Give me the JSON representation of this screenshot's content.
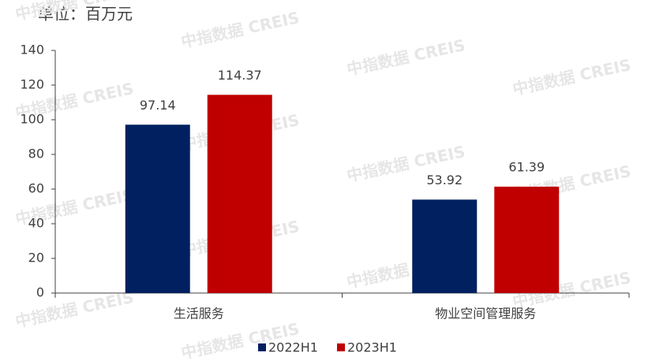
{
  "chart_data": {
    "type": "bar",
    "title": "单位：百万元",
    "watermark": "中指数据 CREIS",
    "categories": [
      "生活服务",
      "物业空间管理服务"
    ],
    "series": [
      {
        "name": "2022H1",
        "color": "#002060",
        "values": [
          97.14,
          53.92
        ]
      },
      {
        "name": "2023H1",
        "color": "#c00000",
        "values": [
          114.37,
          61.39
        ]
      }
    ],
    "ylim": [
      0,
      140
    ],
    "yticks": [
      0,
      20,
      40,
      60,
      80,
      100,
      120,
      140
    ],
    "grid": false
  }
}
